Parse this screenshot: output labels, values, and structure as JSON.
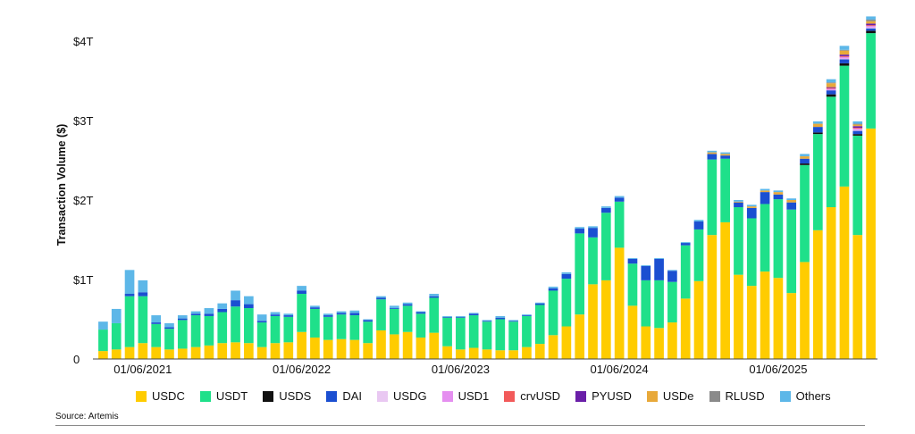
{
  "chart_data": {
    "type": "bar",
    "stacked": true,
    "ylabel": "Transaction Volume ($)",
    "y_ticks": [
      {
        "value": 0,
        "label": "0"
      },
      {
        "value": 1,
        "label": "$1T"
      },
      {
        "value": 2,
        "label": "$2T"
      },
      {
        "value": 3,
        "label": "$3T"
      },
      {
        "value": 4,
        "label": "$4T"
      }
    ],
    "ylim": [
      0,
      4.4
    ],
    "x_tick_labels": [
      {
        "index": 3,
        "label": "01/06/2021"
      },
      {
        "index": 15,
        "label": "01/06/2022"
      },
      {
        "index": 27,
        "label": "01/06/2023"
      },
      {
        "index": 39,
        "label": "01/06/2024"
      },
      {
        "index": 51,
        "label": "01/06/2025"
      }
    ],
    "grid": false,
    "legend_position": "bottom",
    "series": [
      {
        "name": "USDC",
        "color": "#FFCC00",
        "values": [
          0.1,
          0.12,
          0.15,
          0.2,
          0.15,
          0.12,
          0.13,
          0.15,
          0.17,
          0.2,
          0.21,
          0.2,
          0.15,
          0.2,
          0.21,
          0.34,
          0.27,
          0.24,
          0.25,
          0.24,
          0.2,
          0.36,
          0.31,
          0.34,
          0.27,
          0.33,
          0.16,
          0.12,
          0.14,
          0.12,
          0.11,
          0.11,
          0.15,
          0.19,
          0.3,
          0.41,
          0.56,
          0.94,
          0.99,
          1.4,
          0.67,
          0.41,
          0.39,
          0.46,
          0.76,
          0.98,
          1.56,
          1.72,
          1.06,
          0.92,
          1.1,
          1.02,
          0.83,
          1.22,
          1.62,
          1.91,
          2.17,
          1.56,
          2.9
        ]
      },
      {
        "name": "USDT",
        "color": "#1FE08A",
        "values": [
          0.27,
          0.33,
          0.64,
          0.59,
          0.29,
          0.26,
          0.36,
          0.4,
          0.37,
          0.39,
          0.45,
          0.44,
          0.31,
          0.34,
          0.32,
          0.48,
          0.36,
          0.29,
          0.31,
          0.31,
          0.27,
          0.39,
          0.32,
          0.33,
          0.3,
          0.44,
          0.36,
          0.4,
          0.41,
          0.35,
          0.39,
          0.36,
          0.39,
          0.49,
          0.56,
          0.6,
          1.02,
          0.59,
          0.85,
          0.58,
          0.53,
          0.58,
          0.6,
          0.51,
          0.67,
          0.65,
          0.95,
          0.8,
          0.85,
          0.85,
          0.85,
          0.99,
          1.05,
          1.22,
          1.21,
          1.39,
          1.52,
          1.25,
          1.2
        ]
      },
      {
        "name": "USDS",
        "color": "#111111",
        "values": [
          0,
          0,
          0,
          0,
          0,
          0,
          0,
          0,
          0,
          0,
          0,
          0,
          0,
          0,
          0,
          0,
          0,
          0,
          0,
          0,
          0,
          0,
          0,
          0,
          0,
          0,
          0,
          0,
          0,
          0,
          0,
          0,
          0,
          0,
          0,
          0,
          0,
          0,
          0,
          0,
          0,
          0,
          0,
          0,
          0,
          0,
          0,
          0,
          0,
          0,
          0,
          0,
          0,
          0.02,
          0.02,
          0.03,
          0.03,
          0.02,
          0.03
        ]
      },
      {
        "name": "DAI",
        "color": "#1B4FD1",
        "values": [
          0,
          0,
          0.03,
          0.05,
          0.02,
          0.02,
          0.02,
          0.02,
          0.03,
          0.04,
          0.08,
          0.05,
          0.02,
          0.02,
          0.02,
          0.04,
          0.02,
          0.02,
          0.02,
          0.03,
          0.02,
          0.02,
          0.01,
          0.02,
          0.02,
          0.02,
          0.01,
          0.01,
          0.02,
          0.01,
          0.02,
          0.01,
          0.01,
          0.02,
          0.03,
          0.06,
          0.06,
          0.12,
          0.06,
          0.05,
          0.06,
          0.18,
          0.27,
          0.14,
          0.03,
          0.1,
          0.07,
          0.04,
          0.06,
          0.13,
          0.15,
          0.06,
          0.09,
          0.06,
          0.07,
          0.05,
          0.05,
          0.04,
          0.03
        ]
      },
      {
        "name": "USDG",
        "color": "#E9C8F2",
        "values": [
          0,
          0,
          0,
          0,
          0,
          0,
          0,
          0,
          0,
          0,
          0,
          0,
          0,
          0,
          0,
          0,
          0,
          0,
          0,
          0,
          0,
          0,
          0,
          0,
          0,
          0,
          0,
          0,
          0,
          0,
          0,
          0,
          0,
          0,
          0,
          0,
          0,
          0,
          0,
          0,
          0,
          0,
          0,
          0,
          0,
          0,
          0,
          0,
          0,
          0,
          0,
          0,
          0,
          0,
          0,
          0,
          0.01,
          0.01,
          0.01
        ]
      },
      {
        "name": "USD1",
        "color": "#E58FF0",
        "values": [
          0,
          0,
          0,
          0,
          0,
          0,
          0,
          0,
          0,
          0,
          0,
          0,
          0,
          0,
          0,
          0,
          0,
          0,
          0,
          0,
          0,
          0,
          0,
          0,
          0,
          0,
          0,
          0,
          0,
          0,
          0,
          0,
          0,
          0,
          0,
          0,
          0,
          0,
          0,
          0,
          0,
          0,
          0,
          0,
          0,
          0,
          0,
          0,
          0,
          0,
          0,
          0,
          0,
          0,
          0,
          0.02,
          0.02,
          0.02,
          0.02
        ]
      },
      {
        "name": "crvUSD",
        "color": "#F25A5A",
        "values": [
          0,
          0,
          0,
          0,
          0,
          0,
          0,
          0,
          0,
          0,
          0,
          0,
          0,
          0,
          0,
          0,
          0,
          0,
          0,
          0,
          0,
          0,
          0,
          0,
          0,
          0,
          0,
          0,
          0,
          0,
          0,
          0,
          0,
          0,
          0,
          0,
          0,
          0,
          0,
          0,
          0,
          0,
          0,
          0,
          0,
          0,
          0,
          0,
          0,
          0,
          0,
          0,
          0,
          0,
          0,
          0.01,
          0.01,
          0.01,
          0.01
        ]
      },
      {
        "name": "PYUSD",
        "color": "#6A1FA8",
        "values": [
          0,
          0,
          0,
          0,
          0,
          0,
          0,
          0,
          0,
          0,
          0,
          0,
          0,
          0,
          0,
          0,
          0,
          0,
          0,
          0,
          0,
          0,
          0,
          0,
          0,
          0,
          0,
          0,
          0,
          0,
          0,
          0,
          0,
          0,
          0,
          0,
          0,
          0,
          0,
          0,
          0,
          0,
          0,
          0,
          0,
          0,
          0,
          0,
          0,
          0,
          0,
          0,
          0,
          0,
          0,
          0.01,
          0.02,
          0.02,
          0.02
        ]
      },
      {
        "name": "USDe",
        "color": "#E8A93A",
        "values": [
          0,
          0,
          0,
          0,
          0,
          0,
          0,
          0,
          0,
          0,
          0,
          0,
          0,
          0,
          0,
          0,
          0,
          0,
          0,
          0,
          0,
          0,
          0,
          0,
          0,
          0,
          0,
          0,
          0,
          0,
          0,
          0,
          0,
          0,
          0,
          0,
          0,
          0,
          0,
          0,
          0,
          0,
          0,
          0,
          0,
          0,
          0.02,
          0.02,
          0.01,
          0.02,
          0.02,
          0.03,
          0.03,
          0.03,
          0.04,
          0.05,
          0.05,
          0.02,
          0.03
        ]
      },
      {
        "name": "RLUSD",
        "color": "#8A8A8A",
        "values": [
          0,
          0,
          0,
          0,
          0,
          0,
          0,
          0,
          0,
          0,
          0,
          0,
          0,
          0,
          0,
          0,
          0,
          0,
          0,
          0,
          0,
          0,
          0,
          0,
          0,
          0,
          0,
          0,
          0,
          0,
          0,
          0,
          0,
          0,
          0,
          0,
          0,
          0,
          0,
          0,
          0,
          0,
          0,
          0,
          0,
          0,
          0,
          0,
          0,
          0,
          0,
          0,
          0,
          0,
          0,
          0.01,
          0.01,
          0.01,
          0.02
        ]
      },
      {
        "name": "Others",
        "color": "#5DB7E8",
        "values": [
          0.1,
          0.18,
          0.3,
          0.15,
          0.09,
          0.05,
          0.04,
          0.03,
          0.07,
          0.07,
          0.12,
          0.1,
          0.08,
          0.03,
          0.02,
          0.06,
          0.02,
          0.02,
          0.02,
          0.03,
          0.01,
          0.02,
          0.03,
          0.02,
          0.01,
          0.03,
          0.01,
          0.01,
          0.01,
          0.01,
          0.02,
          0.01,
          0.01,
          0.01,
          0.02,
          0.02,
          0.02,
          0.02,
          0.02,
          0.02,
          0.01,
          0.01,
          0.01,
          0.01,
          0.01,
          0.02,
          0.02,
          0.02,
          0.02,
          0.02,
          0.02,
          0.02,
          0.02,
          0.03,
          0.03,
          0.04,
          0.05,
          0.03,
          0.04
        ]
      }
    ]
  },
  "source": "Source: Artemis"
}
